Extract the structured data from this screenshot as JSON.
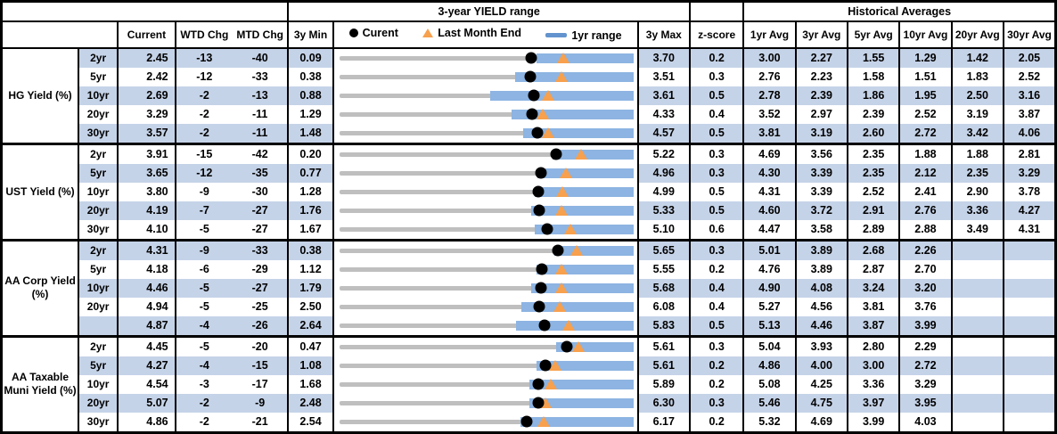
{
  "header": {
    "chart_section_title": "3-year YIELD range",
    "historical_title": "Historical Averages",
    "columns": {
      "current": "Current",
      "wtd": "WTD Chg",
      "mtd": "MTD Chg",
      "min": "3y Min",
      "max": "3y Max",
      "z": "z-score"
    },
    "avg_cols": [
      "1yr Avg",
      "3yr Avg",
      "5yr Avg",
      "10yr Avg",
      "20yr Avg",
      "30yr Avg"
    ],
    "legend": {
      "current": "Curent",
      "last_month_end": "Last Month End",
      "range": "1yr range"
    }
  },
  "colors": {
    "row_stripe": "#C5D3E8",
    "range_bar_blue": "#8DB4E2",
    "marker_orange": "#F7A04D",
    "range_line_grey": "#BFBFBF",
    "legend_dash_blue": "#6293CE",
    "border_black": "#000000"
  },
  "chart_data": {
    "type": "bullet",
    "description": "Each row: grey line = 3y min..3y max range, blue bar = 1yr range (est. low), black dot = current, orange triangle = last month end (current - MTD chg bp).",
    "groups": [
      {
        "label": "HG Yield (%)",
        "rows": [
          {
            "tenor": "2yr",
            "current": "2.45",
            "wtd": "-13",
            "mtd": "-40",
            "min": "0.09",
            "max": "3.70",
            "z": "0.2",
            "avgs": [
              "3.00",
              "2.27",
              "1.55",
              "1.29",
              "1.42",
              "2.05"
            ],
            "lme": 2.85,
            "lo": 2.52
          },
          {
            "tenor": "5yr",
            "current": "2.42",
            "wtd": "-12",
            "mtd": "-33",
            "min": "0.38",
            "max": "3.51",
            "z": "0.3",
            "avgs": [
              "2.76",
              "2.23",
              "1.58",
              "1.51",
              "1.83",
              "2.52"
            ],
            "lme": 2.75,
            "lo": 2.26
          },
          {
            "tenor": "10yr",
            "current": "2.69",
            "wtd": "-2",
            "mtd": "-13",
            "min": "0.88",
            "max": "3.61",
            "z": "0.5",
            "avgs": [
              "2.78",
              "2.39",
              "1.86",
              "1.95",
              "2.50",
              "3.16"
            ],
            "lme": 2.82,
            "lo": 2.29
          },
          {
            "tenor": "20yr",
            "current": "3.29",
            "wtd": "-2",
            "mtd": "-11",
            "min": "1.29",
            "max": "4.33",
            "z": "0.4",
            "avgs": [
              "3.52",
              "2.97",
              "2.39",
              "2.52",
              "3.19",
              "3.87"
            ],
            "lme": 3.4,
            "lo": 3.08
          },
          {
            "tenor": "30yr",
            "current": "3.57",
            "wtd": "-2",
            "mtd": "-11",
            "min": "1.48",
            "max": "4.57",
            "z": "0.5",
            "avgs": [
              "3.81",
              "3.19",
              "2.60",
              "2.72",
              "3.42",
              "4.06"
            ],
            "lme": 3.68,
            "lo": 3.42
          }
        ]
      },
      {
        "label": "UST Yield (%)",
        "rows": [
          {
            "tenor": "2yr",
            "current": "3.91",
            "wtd": "-15",
            "mtd": "-42",
            "min": "0.20",
            "max": "5.22",
            "z": "0.3",
            "avgs": [
              "4.69",
              "3.56",
              "2.35",
              "1.88",
              "1.88",
              "2.81"
            ],
            "lme": 4.33,
            "lo": 3.85
          },
          {
            "tenor": "5yr",
            "current": "3.65",
            "wtd": "-12",
            "mtd": "-35",
            "min": "0.77",
            "max": "4.96",
            "z": "0.3",
            "avgs": [
              "4.30",
              "3.39",
              "2.35",
              "2.12",
              "2.35",
              "3.29"
            ],
            "lme": 4.0,
            "lo": 3.6
          },
          {
            "tenor": "10yr",
            "current": "3.80",
            "wtd": "-9",
            "mtd": "-30",
            "min": "1.28",
            "max": "4.99",
            "z": "0.5",
            "avgs": [
              "4.31",
              "3.39",
              "2.52",
              "2.41",
              "2.90",
              "3.78"
            ],
            "lme": 4.1,
            "lo": 3.75
          },
          {
            "tenor": "20yr",
            "current": "4.19",
            "wtd": "-7",
            "mtd": "-27",
            "min": "1.76",
            "max": "5.33",
            "z": "0.5",
            "avgs": [
              "4.60",
              "3.72",
              "2.91",
              "2.76",
              "3.36",
              "4.27"
            ],
            "lme": 4.46,
            "lo": 4.1
          },
          {
            "tenor": "30yr",
            "current": "4.10",
            "wtd": "-5",
            "mtd": "-27",
            "min": "1.67",
            "max": "5.10",
            "z": "0.6",
            "avgs": [
              "4.47",
              "3.58",
              "2.89",
              "2.88",
              "3.49",
              "4.31"
            ],
            "lme": 4.37,
            "lo": 3.96
          }
        ]
      },
      {
        "label": "AA Corp Yield (%)",
        "rows": [
          {
            "tenor": "2yr",
            "current": "4.31",
            "wtd": "-9",
            "mtd": "-33",
            "min": "0.38",
            "max": "5.65",
            "z": "0.3",
            "avgs": [
              "5.01",
              "3.89",
              "2.68",
              "2.26",
              "",
              ""
            ],
            "lme": 4.64,
            "lo": 4.25
          },
          {
            "tenor": "5yr",
            "current": "4.18",
            "wtd": "-6",
            "mtd": "-29",
            "min": "1.12",
            "max": "5.55",
            "z": "0.2",
            "avgs": [
              "4.76",
              "3.89",
              "2.87",
              "2.70",
              "",
              ""
            ],
            "lme": 4.47,
            "lo": 4.1
          },
          {
            "tenor": "10yr",
            "current": "4.46",
            "wtd": "-5",
            "mtd": "-27",
            "min": "1.79",
            "max": "5.68",
            "z": "0.4",
            "avgs": [
              "4.90",
              "4.08",
              "3.24",
              "3.20",
              "",
              ""
            ],
            "lme": 4.73,
            "lo": 4.34
          },
          {
            "tenor": "20yr",
            "current": "4.94",
            "wtd": "-5",
            "mtd": "-25",
            "min": "2.50",
            "max": "6.08",
            "z": "0.4",
            "avgs": [
              "5.27",
              "4.56",
              "3.81",
              "3.76",
              "",
              ""
            ],
            "lme": 5.19,
            "lo": 4.72
          },
          {
            "tenor": "",
            "current": "4.87",
            "wtd": "-4",
            "mtd": "-26",
            "min": "2.64",
            "max": "5.83",
            "z": "0.5",
            "avgs": [
              "5.13",
              "4.46",
              "3.87",
              "3.99",
              "",
              ""
            ],
            "lme": 5.13,
            "lo": 4.57
          }
        ]
      },
      {
        "label": "AA Taxable Muni Yield (%)",
        "rows": [
          {
            "tenor": "2yr",
            "current": "4.45",
            "wtd": "-5",
            "mtd": "-20",
            "min": "0.47",
            "max": "5.61",
            "z": "0.3",
            "avgs": [
              "5.04",
              "3.93",
              "2.80",
              "2.29",
              "",
              ""
            ],
            "lme": 4.65,
            "lo": 4.27
          },
          {
            "tenor": "5yr",
            "current": "4.27",
            "wtd": "-4",
            "mtd": "-15",
            "min": "1.08",
            "max": "5.61",
            "z": "0.2",
            "avgs": [
              "4.86",
              "4.00",
              "3.00",
              "2.72",
              "",
              ""
            ],
            "lme": 4.42,
            "lo": 4.13
          },
          {
            "tenor": "10yr",
            "current": "4.54",
            "wtd": "-3",
            "mtd": "-17",
            "min": "1.68",
            "max": "5.89",
            "z": "0.2",
            "avgs": [
              "5.08",
              "4.25",
              "3.36",
              "3.29",
              "",
              ""
            ],
            "lme": 4.71,
            "lo": 4.41
          },
          {
            "tenor": "20yr",
            "current": "5.07",
            "wtd": "-2",
            "mtd": "-9",
            "min": "2.48",
            "max": "6.30",
            "z": "0.3",
            "avgs": [
              "5.46",
              "4.75",
              "3.97",
              "3.95",
              "",
              ""
            ],
            "lme": 5.16,
            "lo": 4.96
          },
          {
            "tenor": "30yr",
            "current": "4.86",
            "wtd": "-2",
            "mtd": "-21",
            "min": "2.54",
            "max": "6.17",
            "z": "0.2",
            "avgs": [
              "5.32",
              "4.69",
              "3.99",
              "4.03",
              "",
              ""
            ],
            "lme": 5.07,
            "lo": 4.79
          }
        ]
      }
    ]
  }
}
